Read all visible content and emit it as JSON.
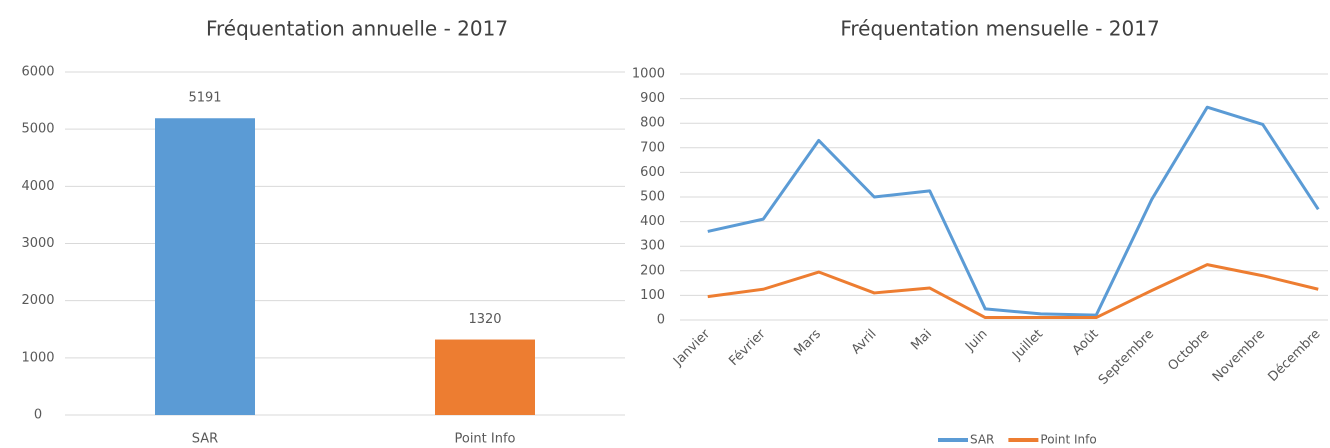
{
  "chart_data": [
    {
      "type": "bar",
      "title": "Fréquentation annuelle - 2017",
      "categories": [
        "SAR",
        "Point Info"
      ],
      "values": [
        5191,
        1320
      ],
      "colors": [
        "#5b9bd5",
        "#ed7d31"
      ],
      "ylim": [
        0,
        6000
      ],
      "yticks": [
        0,
        1000,
        2000,
        3000,
        4000,
        5000,
        6000
      ],
      "grid": true,
      "data_labels": true
    },
    {
      "type": "line",
      "title": "Fréquentation mensuelle - 2017",
      "categories": [
        "Janvier",
        "Février",
        "Mars",
        "Avril",
        "Mai",
        "Juin",
        "Juillet",
        "Août",
        "Septembre",
        "Octobre",
        "Novembre",
        "Décembre"
      ],
      "series": [
        {
          "name": "SAR",
          "color": "#5b9bd5",
          "values": [
            360,
            410,
            730,
            500,
            525,
            45,
            25,
            20,
            490,
            865,
            795,
            450
          ]
        },
        {
          "name": "Point Info",
          "color": "#ed7d31",
          "values": [
            95,
            125,
            195,
            110,
            130,
            10,
            10,
            10,
            120,
            225,
            180,
            125
          ]
        }
      ],
      "ylim": [
        0,
        1000
      ],
      "yticks": [
        0,
        100,
        200,
        300,
        400,
        500,
        600,
        700,
        800,
        900,
        1000
      ],
      "grid": true,
      "legend": "bottom"
    }
  ]
}
